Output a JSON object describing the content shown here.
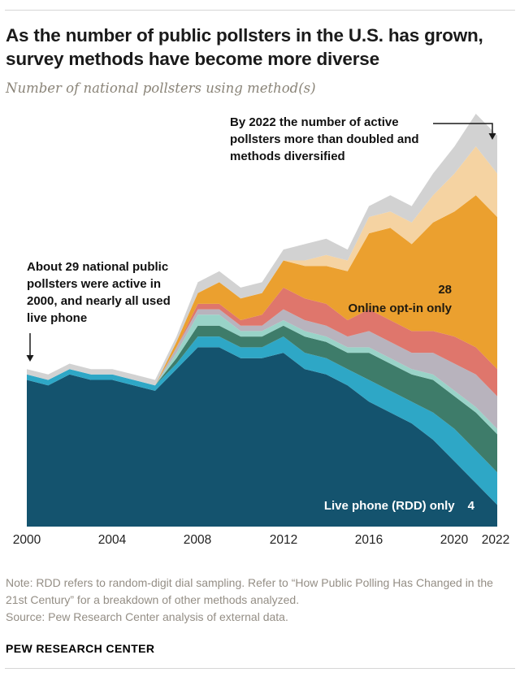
{
  "page": {
    "title": "As the number of public pollsters in the U.S. has grown, survey methods have become more diverse",
    "subtitle": "Number of national pollsters using method(s)",
    "note": "Note: RDD refers to random-digit dial sampling. Refer to “How Public Polling Has Changed in the 21st Century” for a breakdown of other methods analyzed.",
    "source": "Source: Pew Research Center analysis of external data.",
    "footer": "PEW RESEARCH CENTER"
  },
  "annotations": {
    "right_callout": "By 2022 the number of active pollsters more than doubled and methods diversified",
    "left_callout": "About 29 national public pollsters were active in 2000, and nearly all used live phone",
    "online_value": "28",
    "online_label": "Online opt-in only",
    "rdd_label": "Live phone (RDD) only",
    "rdd_value": "4"
  },
  "axis": {
    "x_labels": [
      "2000",
      "2004",
      "2008",
      "2012",
      "2016",
      "2020",
      "2022"
    ]
  },
  "chart_data": {
    "type": "area",
    "title": "As the number of public pollsters in the U.S. has grown, survey methods have become more diverse",
    "subtitle": "Number of national pollsters using method(s)",
    "xlabel": "",
    "ylabel": "Number of national pollsters using method(s)",
    "ylim": [
      0,
      76
    ],
    "grid": false,
    "legend_position": "none",
    "stacked": true,
    "x": [
      2000,
      2001,
      2002,
      2003,
      2004,
      2005,
      2006,
      2007,
      2008,
      2009,
      2010,
      2011,
      2012,
      2013,
      2014,
      2015,
      2016,
      2017,
      2018,
      2019,
      2020,
      2021,
      2022
    ],
    "series": [
      {
        "name": "Live phone (RDD) only",
        "color": "#14536e",
        "values": [
          27,
          26,
          28,
          27,
          27,
          26,
          25,
          29,
          33,
          33,
          31,
          31,
          32,
          29,
          28,
          26,
          23,
          21,
          19,
          16,
          12,
          8,
          4
        ]
      },
      {
        "name": "Unlabeled method mix (cyan)",
        "color": "#2ea7c6",
        "values": [
          1,
          1,
          1,
          1,
          1,
          1,
          1,
          1,
          2,
          2,
          2,
          2,
          3,
          3,
          3,
          3,
          4,
          4,
          4,
          5,
          6,
          6,
          6
        ]
      },
      {
        "name": "Unlabeled method mix (dark teal)",
        "color": "#3e7c6a",
        "values": [
          0,
          0,
          0,
          0,
          0,
          0,
          0,
          1,
          2,
          2,
          2,
          2,
          2,
          3,
          3,
          3,
          5,
          5,
          5,
          6,
          6,
          7,
          7
        ]
      },
      {
        "name": "Unlabeled method mix (light teal)",
        "color": "#99d3c8",
        "values": [
          0,
          0,
          0,
          0,
          0,
          0,
          0,
          1,
          2,
          2,
          1,
          1,
          1,
          1,
          1,
          1,
          1,
          1,
          1,
          1,
          1,
          1,
          1
        ]
      },
      {
        "name": "Unlabeled method mix (gray)",
        "color": "#b8b3bd",
        "values": [
          0,
          0,
          0,
          0,
          0,
          0,
          0,
          1,
          1,
          1,
          1,
          1,
          2,
          2,
          2,
          2,
          3,
          3,
          3,
          4,
          5,
          6,
          6
        ]
      },
      {
        "name": "Unlabeled method mix (salmon)",
        "color": "#df766c",
        "values": [
          0,
          0,
          0,
          0,
          0,
          0,
          0,
          0,
          1,
          1,
          1,
          2,
          4,
          4,
          4,
          3,
          4,
          4,
          4,
          4,
          5,
          5,
          5
        ]
      },
      {
        "name": "Online opt-in only",
        "color": "#eba02f",
        "values": [
          0,
          0,
          0,
          0,
          0,
          0,
          0,
          1,
          2,
          4,
          4,
          4,
          5,
          6,
          7,
          9,
          14,
          17,
          16,
          20,
          23,
          28,
          28
        ]
      },
      {
        "name": "Unlabeled method mix (tan)",
        "color": "#f5d3a2",
        "values": [
          0,
          0,
          0,
          0,
          0,
          0,
          0,
          0,
          0,
          0,
          0,
          0,
          0,
          1,
          2,
          2,
          3,
          3,
          4,
          5,
          7,
          9,
          8
        ]
      },
      {
        "name": "Unlabeled method mix (light gray)",
        "color": "#d2d2d2",
        "values": [
          1,
          1,
          1,
          1,
          1,
          1,
          1,
          1,
          2,
          2,
          2,
          2,
          2,
          3,
          3,
          2,
          2,
          3,
          3,
          4,
          5,
          6,
          7
        ]
      }
    ],
    "labeled_points": [
      {
        "series": "Online opt-in only",
        "x": 2022,
        "value": 28
      },
      {
        "series": "Live phone (RDD) only",
        "x": 2022,
        "value": 4
      }
    ]
  }
}
